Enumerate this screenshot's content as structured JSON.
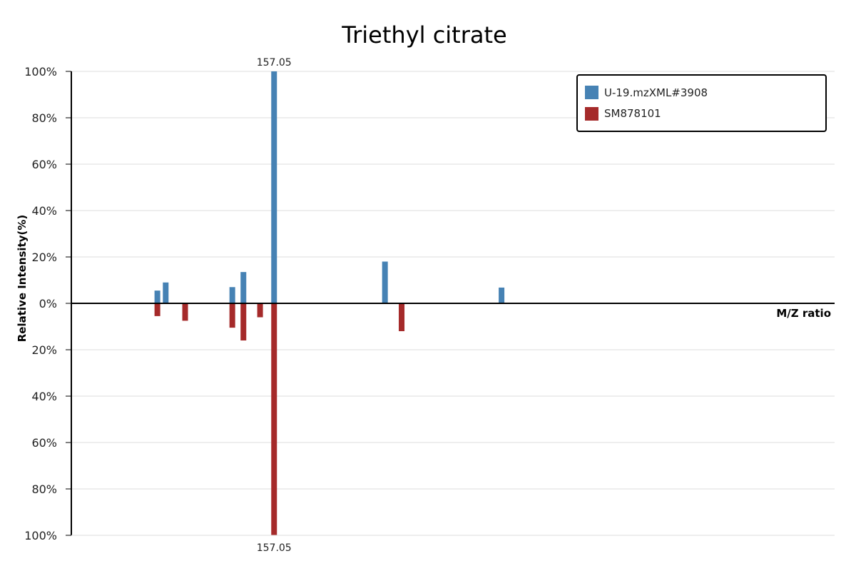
{
  "chart_data": {
    "type": "bar",
    "title": "Triethyl citrate",
    "xlabel": "M/Z ratio",
    "ylabel": "Relative Intensity(%)",
    "ylim_top": [
      0,
      100
    ],
    "ylim_bottom": [
      0,
      100
    ],
    "y_ticks_top": [
      "100%",
      "80%",
      "60%",
      "40%",
      "20%",
      "0%"
    ],
    "y_ticks_bottom": [
      "20%",
      "40%",
      "60%",
      "80%",
      "100%"
    ],
    "grid": true,
    "legend_position": "top-right",
    "series": [
      {
        "name": "U-19.mzXML#3908",
        "color": "#4682b4",
        "direction": "up",
        "peaks": [
          {
            "x": 115.0,
            "y": 5.5
          },
          {
            "x": 118.0,
            "y": 9.0
          },
          {
            "x": 142.0,
            "y": 7.0
          },
          {
            "x": 146.0,
            "y": 13.5
          },
          {
            "x": 157.05,
            "y": 100,
            "label": "157.05"
          },
          {
            "x": 197.0,
            "y": 18.0
          },
          {
            "x": 239.0,
            "y": 6.8
          }
        ]
      },
      {
        "name": "SM878101",
        "color": "#a52a2a",
        "direction": "down",
        "peaks": [
          {
            "x": 115.0,
            "y": 5.5
          },
          {
            "x": 125.0,
            "y": 7.5
          },
          {
            "x": 142.0,
            "y": 10.5
          },
          {
            "x": 146.0,
            "y": 16.0
          },
          {
            "x": 152.0,
            "y": 6.0
          },
          {
            "x": 157.05,
            "y": 100,
            "label": "157.05"
          },
          {
            "x": 203.0,
            "y": 12.0
          }
        ]
      }
    ],
    "x_domain": [
      84,
      359
    ]
  }
}
